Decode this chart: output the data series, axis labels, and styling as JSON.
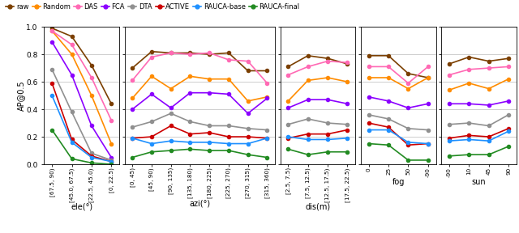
{
  "series": {
    "raw": {
      "color": "#7B3F00",
      "label": "raw"
    },
    "Random": {
      "color": "#FF8C00",
      "label": "Random"
    },
    "DAS": {
      "color": "#FF69B4",
      "label": "DAS"
    },
    "FCA": {
      "color": "#8B00FF",
      "label": "FCA"
    },
    "DTA": {
      "color": "#909090",
      "label": "DTA"
    },
    "ACTIVE": {
      "color": "#CC0000",
      "label": "ACTIVE"
    },
    "RAUCA_base": {
      "color": "#1E90FF",
      "label": "RAUCA-base"
    },
    "RAUCA_final": {
      "color": "#228B22",
      "label": "RAUCA-final"
    }
  },
  "panels": [
    {
      "xlabel": "ele(°)",
      "xticks": [
        "[67.5, 90)",
        "[45.0, 67.5)",
        "[22.5, 45.0)",
        "[0, 22.5)"
      ],
      "data": {
        "raw": [
          0.99,
          0.93,
          0.72,
          0.44
        ],
        "Random": [
          0.97,
          0.8,
          0.5,
          0.15
        ],
        "DAS": [
          0.97,
          0.87,
          0.63,
          0.32
        ],
        "FCA": [
          0.89,
          0.65,
          0.28,
          0.05
        ],
        "DTA": [
          0.69,
          0.38,
          0.08,
          0.03
        ],
        "ACTIVE": [
          0.59,
          0.18,
          0.06,
          0.02
        ],
        "RAUCA_base": [
          0.5,
          0.16,
          0.05,
          0.02
        ],
        "RAUCA_final": [
          0.25,
          0.04,
          0.01,
          0.0
        ]
      }
    },
    {
      "xlabel": "azi(°)",
      "xticks": [
        "[0, 45)",
        "[45, 90)",
        "[90, 135)",
        "[135, 180)",
        "[180, 225)",
        "[225, 270)",
        "[270, 315)",
        "[315, 360)"
      ],
      "data": {
        "raw": [
          0.7,
          0.82,
          0.81,
          0.81,
          0.8,
          0.81,
          0.68,
          0.68
        ],
        "Random": [
          0.48,
          0.64,
          0.55,
          0.64,
          0.62,
          0.62,
          0.46,
          0.49
        ],
        "DAS": [
          0.61,
          0.78,
          0.81,
          0.8,
          0.81,
          0.76,
          0.75,
          0.59
        ],
        "FCA": [
          0.4,
          0.51,
          0.41,
          0.52,
          0.52,
          0.51,
          0.37,
          0.48
        ],
        "DTA": [
          0.27,
          0.31,
          0.37,
          0.31,
          0.28,
          0.28,
          0.26,
          0.25
        ],
        "ACTIVE": [
          0.19,
          0.2,
          0.28,
          0.22,
          0.23,
          0.2,
          0.2,
          0.19
        ],
        "RAUCA_base": [
          0.19,
          0.15,
          0.17,
          0.16,
          0.16,
          0.15,
          0.15,
          0.19
        ],
        "RAUCA_final": [
          0.05,
          0.09,
          0.1,
          0.11,
          0.1,
          0.1,
          0.07,
          0.05
        ]
      }
    },
    {
      "xlabel": "dis(m)",
      "xticks": [
        "[2.5, 7.5)",
        "[7.5, 12.5)",
        "[12.5, 17.5)",
        "[17.5, 22.5)"
      ],
      "data": {
        "raw": [
          0.71,
          0.79,
          0.77,
          0.73
        ],
        "Random": [
          0.46,
          0.61,
          0.63,
          0.6
        ],
        "DAS": [
          0.65,
          0.71,
          0.75,
          0.74
        ],
        "FCA": [
          0.41,
          0.47,
          0.47,
          0.44
        ],
        "DTA": [
          0.29,
          0.33,
          0.3,
          0.29
        ],
        "ACTIVE": [
          0.19,
          0.22,
          0.22,
          0.25
        ],
        "RAUCA_base": [
          0.2,
          0.18,
          0.18,
          0.19
        ],
        "RAUCA_final": [
          0.11,
          0.07,
          0.09,
          0.09
        ]
      }
    },
    {
      "xlabel": "fog",
      "xticks": [
        "0",
        "25",
        "50",
        "-90"
      ],
      "data": {
        "raw": [
          0.79,
          0.79,
          0.66,
          0.63
        ],
        "Random": [
          0.63,
          0.63,
          0.55,
          0.63
        ],
        "DAS": [
          0.71,
          0.71,
          0.59,
          0.71
        ],
        "FCA": [
          0.49,
          0.46,
          0.41,
          0.44
        ],
        "DTA": [
          0.36,
          0.33,
          0.26,
          0.25
        ],
        "ACTIVE": [
          0.3,
          0.27,
          0.14,
          0.15
        ],
        "RAUCA_base": [
          0.25,
          0.25,
          0.16,
          0.15
        ],
        "RAUCA_final": [
          0.15,
          0.14,
          0.03,
          0.03
        ]
      }
    },
    {
      "xlabel": "sun",
      "xticks": [
        "-90",
        "10",
        "45",
        "90"
      ],
      "data": {
        "raw": [
          0.73,
          0.78,
          0.75,
          0.77
        ],
        "Random": [
          0.54,
          0.59,
          0.55,
          0.62
        ],
        "DAS": [
          0.65,
          0.69,
          0.7,
          0.71
        ],
        "FCA": [
          0.44,
          0.44,
          0.43,
          0.46
        ],
        "DTA": [
          0.29,
          0.3,
          0.28,
          0.36
        ],
        "ACTIVE": [
          0.19,
          0.21,
          0.2,
          0.26
        ],
        "RAUCA_base": [
          0.17,
          0.18,
          0.17,
          0.24
        ],
        "RAUCA_final": [
          0.06,
          0.07,
          0.07,
          0.13
        ]
      }
    }
  ],
  "ylabel": "AP@0.5",
  "ylim": [
    0.0,
    1.0
  ],
  "yticks": [
    0.0,
    0.2,
    0.4,
    0.6,
    0.8,
    1.0
  ],
  "marker": "o",
  "markersize": 3.0,
  "linewidth": 1.2
}
